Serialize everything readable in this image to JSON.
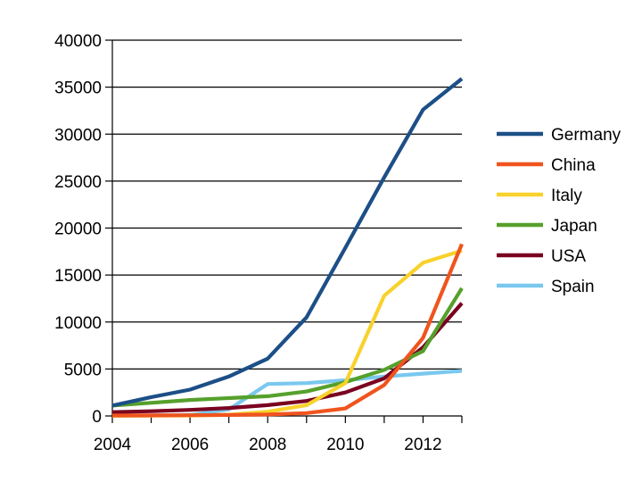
{
  "chart_data": {
    "type": "line",
    "title": "",
    "xlabel": "",
    "ylabel": "",
    "xlim": [
      2004,
      2013
    ],
    "ylim": [
      0,
      40000
    ],
    "x": [
      2004,
      2005,
      2006,
      2007,
      2008,
      2009,
      2010,
      2011,
      2012,
      2013
    ],
    "x_ticks": [
      2004,
      2006,
      2008,
      2010,
      2012
    ],
    "y_ticks": [
      0,
      5000,
      10000,
      15000,
      20000,
      25000,
      30000,
      35000,
      40000
    ],
    "grid": "horizontal",
    "legend_position": "right",
    "series": [
      {
        "name": "Germany",
        "color": "#1c4f87",
        "values": [
          1100,
          2000,
          2800,
          4200,
          6100,
          10500,
          17900,
          25400,
          32600,
          35900
        ]
      },
      {
        "name": "China",
        "color": "#f0541e",
        "values": [
          50,
          60,
          80,
          100,
          150,
          300,
          800,
          3300,
          8300,
          18300
        ]
      },
      {
        "name": "Italy",
        "color": "#f8d22c",
        "values": [
          20,
          40,
          50,
          120,
          460,
          1150,
          3500,
          12800,
          16300,
          17600
        ]
      },
      {
        "name": "Japan",
        "color": "#56a02c",
        "values": [
          1100,
          1400,
          1700,
          1900,
          2100,
          2600,
          3600,
          4900,
          6900,
          13600
        ]
      },
      {
        "name": "USA",
        "color": "#7a0020",
        "values": [
          400,
          500,
          650,
          850,
          1150,
          1600,
          2500,
          4000,
          7300,
          12000
        ]
      },
      {
        "name": "Spain",
        "color": "#7ac8ef",
        "values": [
          20,
          50,
          100,
          700,
          3400,
          3500,
          3800,
          4200,
          4500,
          4800
        ]
      }
    ]
  }
}
